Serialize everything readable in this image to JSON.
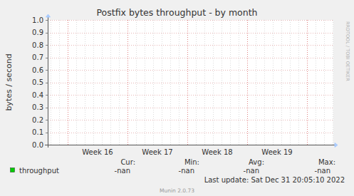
{
  "chart_data": {
    "type": "line",
    "title": "Postfix bytes throughput - by month",
    "y_label": "bytes / second",
    "x": [],
    "series": [
      {
        "name": "throughput",
        "color": "#00cc00",
        "values": [],
        "stats": [
          "-nan",
          "-nan",
          "-nan",
          "-nan"
        ]
      }
    ],
    "legend_columns": [
      "Cur:",
      "Min:",
      "Avg:",
      "Max:"
    ],
    "xlim": [
      15.667,
      20.44
    ],
    "xticks": [
      {
        "value": 16.5,
        "label": "Week 16"
      },
      {
        "value": 17.5,
        "label": "Week 17"
      },
      {
        "value": 18.5,
        "label": "Week 18"
      },
      {
        "value": 19.5,
        "label": "Week 19"
      }
    ],
    "ylim": [
      0,
      1
    ],
    "yticks": [
      {
        "value": 0,
        "label": "0.0"
      },
      0.1,
      0.2,
      0.3,
      0.4,
      0.5,
      0.6,
      0.7,
      0.8,
      0.9,
      {
        "value": 1,
        "label": "1.0"
      }
    ],
    "grid": true,
    "last_update": "Last update: Sat Dec 31 20:05:10 2022",
    "watermark": "RRDTOOL / TOBI OETIKER",
    "footer": "Munin 2.0.73"
  }
}
